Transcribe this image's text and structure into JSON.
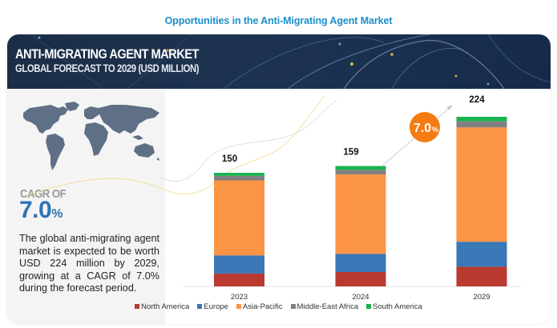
{
  "page_title": "Opportunities in the Anti-Migrating Agent Market",
  "banner": {
    "title": "ANTI-MIGRATING AGENT MARKET",
    "subtitle": "GLOBAL FORECAST TO 2029 (USD MILLION)"
  },
  "left_panel": {
    "map_icon": "world-map-icon",
    "cagr_label": "CAGR OF",
    "cagr_value": "7.0",
    "cagr_unit": "%",
    "description": "The global anti-migrating agent market is expected to be worth USD 224 million by 2029, growing at a CAGR of 7.0% during the forecast period."
  },
  "growth_badge": {
    "value": "7.0",
    "unit": "%",
    "color": "#f47c12"
  },
  "colors": {
    "title": "#1a8fc9",
    "banner_bg": "#1c3150",
    "cagr_value": "#2f73b5",
    "map": "#5f6f85"
  },
  "chart_data": {
    "type": "bar",
    "stacked": true,
    "title": "Anti-Migrating Agent Market, Global Forecast to 2029 (USD Million)",
    "xlabel": "",
    "ylabel": "USD Million",
    "categories": [
      "2023",
      "2024",
      "2029"
    ],
    "totals": [
      150,
      159,
      224
    ],
    "ylim": [
      0,
      224
    ],
    "grid": false,
    "legend_position": "bottom",
    "series": [
      {
        "name": "North America",
        "color": "#b83a31",
        "values": [
          17,
          19,
          26
        ]
      },
      {
        "name": "Europe",
        "color": "#3a77b6",
        "values": [
          24,
          24,
          33
        ]
      },
      {
        "name": "Asia-Pacific",
        "color": "#fb9444",
        "values": [
          99,
          105,
          151
        ]
      },
      {
        "name": "Middle-East Africa",
        "color": "#808080",
        "values": [
          6,
          6,
          8
        ]
      },
      {
        "name": "South America",
        "color": "#19b24e",
        "values": [
          4,
          5,
          6
        ]
      }
    ],
    "annotations": [
      {
        "type": "cagr-arrow",
        "from": "2024",
        "to": "2029",
        "label": "7.0%"
      }
    ]
  }
}
